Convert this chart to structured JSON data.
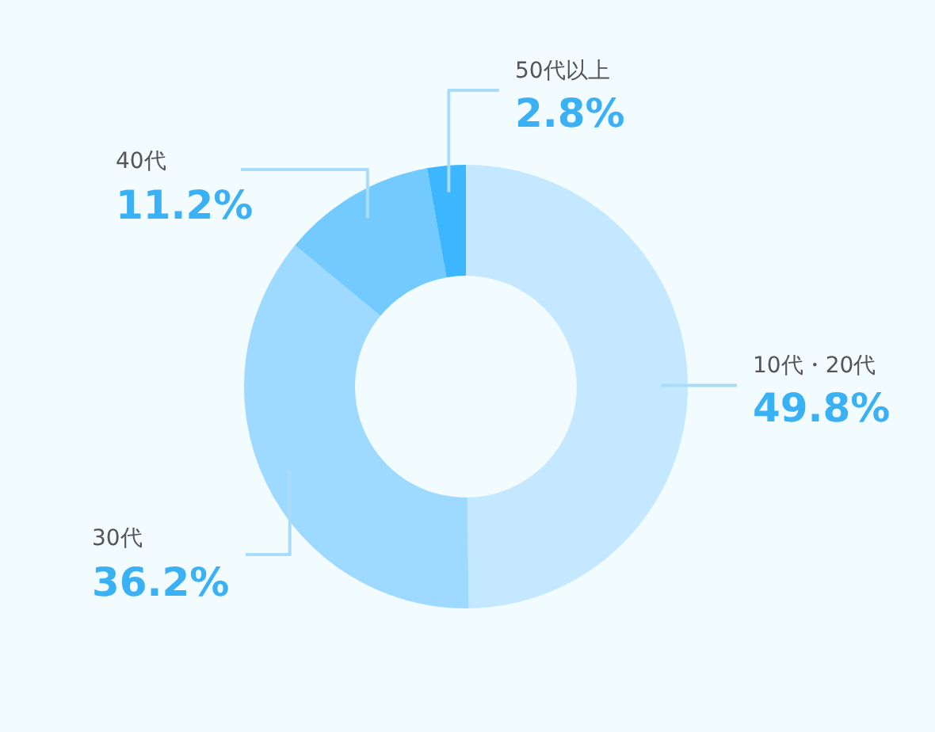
{
  "chart_data": {
    "type": "donut",
    "categories": [
      "10代・20代",
      "30代",
      "40代",
      "50代以上"
    ],
    "values": [
      49.8,
      36.2,
      11.2,
      2.8
    ],
    "colors": [
      "#c4e8ff",
      "#9ed9ff",
      "#72caff",
      "#3cb6ff"
    ],
    "value_labels": [
      "49.8%",
      "36.2%",
      "11.2%",
      "2.8%"
    ]
  }
}
